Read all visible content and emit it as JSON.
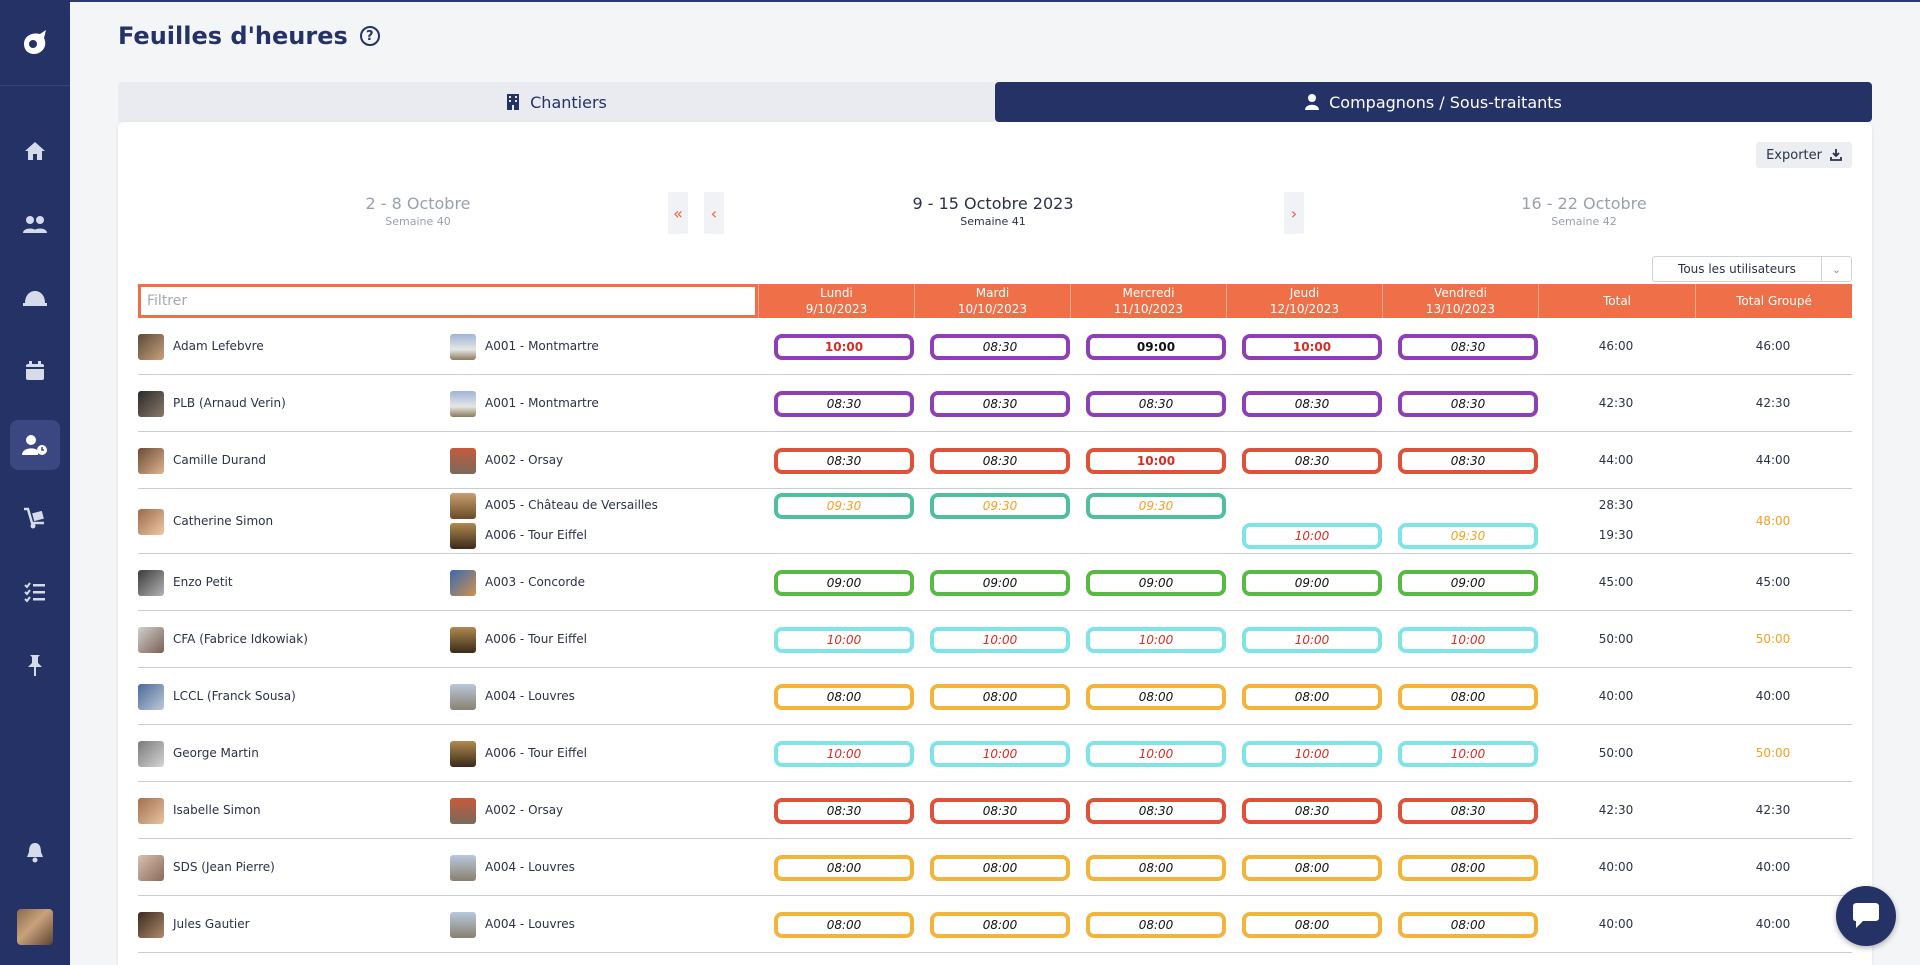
{
  "page": {
    "title": "Feuilles d'heures",
    "tabs": [
      {
        "label": "Chantiers",
        "icon": "building-icon",
        "active": false
      },
      {
        "label": "Compagnons / Sous-traitants",
        "icon": "user-icon",
        "active": true
      }
    ],
    "export_label": "Exporter",
    "user_filter": "Tous les utilisateurs",
    "filter_placeholder": "Filtrer"
  },
  "sidebar": {
    "items": [
      "home-icon",
      "team-icon",
      "helmet-icon",
      "calendar-icon",
      "user-clock-icon",
      "dolly-icon",
      "checklist-icon",
      "pin-icon",
      "bell-icon"
    ],
    "active_index": 4
  },
  "weeks": {
    "prev": {
      "label": "2 - 8 Octobre",
      "sub": "Semaine 40"
    },
    "current": {
      "label": "9 - 15 Octobre 2023",
      "sub": "Semaine 41"
    },
    "next": {
      "label": "16 - 22 Octobre",
      "sub": "Semaine 42"
    },
    "nav_first": "«",
    "nav_prev": "‹",
    "nav_next": "›"
  },
  "columns": [
    {
      "day": "Lundi",
      "date": "9/10/2023"
    },
    {
      "day": "Mardi",
      "date": "10/10/2023"
    },
    {
      "day": "Mercredi",
      "date": "11/10/2023"
    },
    {
      "day": "Jeudi",
      "date": "12/10/2023"
    },
    {
      "day": "Vendredi",
      "date": "13/10/2023"
    }
  ],
  "col_total": "Total",
  "col_group_total": "Total Groupé",
  "colors": {
    "navy": "#243266",
    "orange": "#ee6f48",
    "purple": "#8e3fb5",
    "red": "#e0513a",
    "teal": "#4fbf9f",
    "cyan": "#7ee4ea",
    "green": "#58b947",
    "yellow": "#f2b53a",
    "warn_text": "#f2a120",
    "alert_text": "#d62d20"
  },
  "rows": [
    {
      "name": "Adam Lefebvre",
      "sites": [
        {
          "name": "A001 - Montmartre",
          "color": "purple",
          "hours": [
            {
              "v": "10:00",
              "s": "red-bold"
            },
            {
              "v": "08:30",
              "s": "italic"
            },
            {
              "v": "09:00",
              "s": "bold"
            },
            {
              "v": "10:00",
              "s": "red-bold"
            },
            {
              "v": "08:30",
              "s": "italic"
            }
          ],
          "total": "46:00"
        }
      ],
      "group_total": "46:00",
      "group_warn": false
    },
    {
      "name": "PLB (Arnaud Verin)",
      "sites": [
        {
          "name": "A001 - Montmartre",
          "color": "purple",
          "hours": [
            {
              "v": "08:30",
              "s": "italic"
            },
            {
              "v": "08:30",
              "s": "italic"
            },
            {
              "v": "08:30",
              "s": "italic"
            },
            {
              "v": "08:30",
              "s": "italic"
            },
            {
              "v": "08:30",
              "s": "italic"
            }
          ],
          "total": "42:30"
        }
      ],
      "group_total": "42:30",
      "group_warn": false
    },
    {
      "name": "Camille Durand",
      "sites": [
        {
          "name": "A002 - Orsay",
          "color": "red",
          "hours": [
            {
              "v": "08:30",
              "s": "italic"
            },
            {
              "v": "08:30",
              "s": "italic"
            },
            {
              "v": "10:00",
              "s": "red-bold"
            },
            {
              "v": "08:30",
              "s": "italic"
            },
            {
              "v": "08:30",
              "s": "italic"
            }
          ],
          "total": "44:00"
        }
      ],
      "group_total": "44:00",
      "group_warn": false
    },
    {
      "name": "Catherine Simon",
      "sites": [
        {
          "name": "A005 - Château de Versailles",
          "color": "teal",
          "hours": [
            {
              "v": "09:30",
              "s": "warn"
            },
            {
              "v": "09:30",
              "s": "warn"
            },
            {
              "v": "09:30",
              "s": "warn"
            },
            null,
            null
          ],
          "total": "28:30"
        },
        {
          "name": "A006 - Tour Eiffel",
          "color": "cyan",
          "hours": [
            null,
            null,
            null,
            {
              "v": "10:00",
              "s": "red"
            },
            {
              "v": "09:30",
              "s": "warn"
            }
          ],
          "total": "19:30"
        }
      ],
      "group_total": "48:00",
      "group_warn": true
    },
    {
      "name": "Enzo Petit",
      "sites": [
        {
          "name": "A003 - Concorde",
          "color": "green",
          "hours": [
            {
              "v": "09:00",
              "s": "italic"
            },
            {
              "v": "09:00",
              "s": "italic"
            },
            {
              "v": "09:00",
              "s": "italic"
            },
            {
              "v": "09:00",
              "s": "italic"
            },
            {
              "v": "09:00",
              "s": "italic"
            }
          ],
          "total": "45:00"
        }
      ],
      "group_total": "45:00",
      "group_warn": false
    },
    {
      "name": "CFA (Fabrice Idkowiak)",
      "sites": [
        {
          "name": "A006 - Tour Eiffel",
          "color": "cyan",
          "hours": [
            {
              "v": "10:00",
              "s": "red"
            },
            {
              "v": "10:00",
              "s": "red"
            },
            {
              "v": "10:00",
              "s": "red"
            },
            {
              "v": "10:00",
              "s": "red"
            },
            {
              "v": "10:00",
              "s": "red"
            }
          ],
          "total": "50:00"
        }
      ],
      "group_total": "50:00",
      "group_warn": true
    },
    {
      "name": "LCCL (Franck Sousa)",
      "sites": [
        {
          "name": "A004 - Louvres",
          "color": "yellow",
          "hours": [
            {
              "v": "08:00",
              "s": "italic"
            },
            {
              "v": "08:00",
              "s": "italic"
            },
            {
              "v": "08:00",
              "s": "italic"
            },
            {
              "v": "08:00",
              "s": "italic"
            },
            {
              "v": "08:00",
              "s": "italic"
            }
          ],
          "total": "40:00"
        }
      ],
      "group_total": "40:00",
      "group_warn": false
    },
    {
      "name": "George Martin",
      "sites": [
        {
          "name": "A006 - Tour Eiffel",
          "color": "cyan",
          "hours": [
            {
              "v": "10:00",
              "s": "red"
            },
            {
              "v": "10:00",
              "s": "red"
            },
            {
              "v": "10:00",
              "s": "red"
            },
            {
              "v": "10:00",
              "s": "red"
            },
            {
              "v": "10:00",
              "s": "red"
            }
          ],
          "total": "50:00"
        }
      ],
      "group_total": "50:00",
      "group_warn": true
    },
    {
      "name": "Isabelle Simon",
      "sites": [
        {
          "name": "A002 - Orsay",
          "color": "red",
          "hours": [
            {
              "v": "08:30",
              "s": "italic"
            },
            {
              "v": "08:30",
              "s": "italic"
            },
            {
              "v": "08:30",
              "s": "italic"
            },
            {
              "v": "08:30",
              "s": "italic"
            },
            {
              "v": "08:30",
              "s": "italic"
            }
          ],
          "total": "42:30"
        }
      ],
      "group_total": "42:30",
      "group_warn": false
    },
    {
      "name": "SDS (Jean Pierre)",
      "sites": [
        {
          "name": "A004 - Louvres",
          "color": "yellow",
          "hours": [
            {
              "v": "08:00",
              "s": "italic"
            },
            {
              "v": "08:00",
              "s": "italic"
            },
            {
              "v": "08:00",
              "s": "italic"
            },
            {
              "v": "08:00",
              "s": "italic"
            },
            {
              "v": "08:00",
              "s": "italic"
            }
          ],
          "total": "40:00"
        }
      ],
      "group_total": "40:00",
      "group_warn": false
    },
    {
      "name": "Jules Gautier",
      "sites": [
        {
          "name": "A004 - Louvres",
          "color": "yellow",
          "hours": [
            {
              "v": "08:00",
              "s": "italic"
            },
            {
              "v": "08:00",
              "s": "italic"
            },
            {
              "v": "08:00",
              "s": "italic"
            },
            {
              "v": "08:00",
              "s": "italic"
            },
            {
              "v": "08:00",
              "s": "italic"
            }
          ],
          "total": "40:00"
        }
      ],
      "group_total": "40:00",
      "group_warn": false
    }
  ]
}
